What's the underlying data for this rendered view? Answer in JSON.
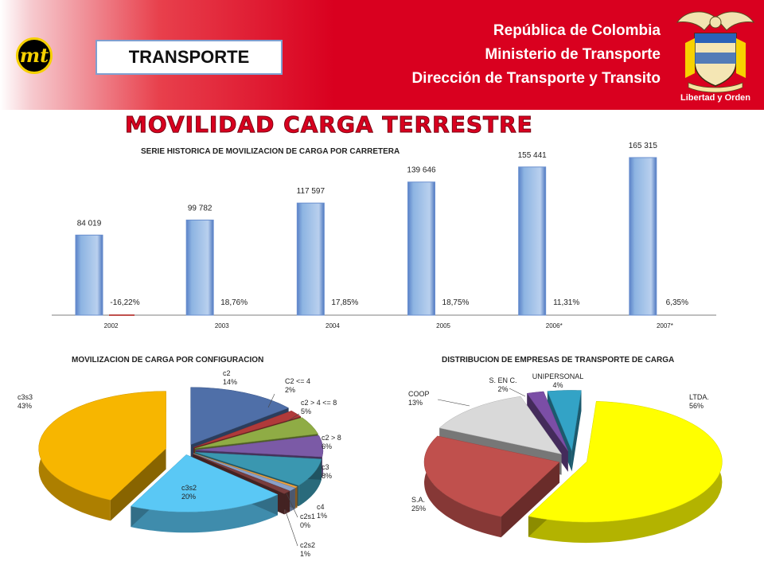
{
  "header": {
    "badge": "TRANSPORTE",
    "ministry_lines": [
      "República de Colombia",
      "Ministerio de Transporte",
      "Dirección de Transporte y Transito"
    ],
    "seal_motto": "Libertad y Orden"
  },
  "page_title": "MOVILIDAD CARGA TERRESTRE",
  "colors": {
    "header_red": "#d9001f",
    "bar_blue": "#8db4e2",
    "growth_red": "#c0504d"
  },
  "chart_data": [
    {
      "type": "bar",
      "title": "SERIE HISTORICA DE MOVILIZACION DE CARGA POR CARRETERA",
      "categories": [
        "2002",
        "2003",
        "2004",
        "2005",
        "2006*",
        "2007*"
      ],
      "series": [
        {
          "values": [
            84019,
            99782,
            117597,
            139646,
            155441,
            165315
          ],
          "labels": [
            "84 019",
            "99 782",
            "117 597",
            "139 646",
            "155 441",
            "165 315"
          ]
        },
        {
          "values": [
            -16.22,
            18.76,
            17.85,
            18.75,
            11.31,
            6.35
          ],
          "labels": [
            "-16,22%",
            "18,76%",
            "17,85%",
            "18,75%",
            "11,31%",
            "6,35%"
          ]
        }
      ],
      "ylim": [
        0,
        165315
      ]
    },
    {
      "type": "pie",
      "title": "MOVILIZACION DE CARGA POR CONFIGURACION",
      "slices": [
        {
          "label": "c2",
          "pct_label": "14%",
          "value": 14,
          "color": "#4f6fa8"
        },
        {
          "label": "C2 <= 4",
          "pct_label": "2%",
          "value": 2,
          "color": "#b03a3a"
        },
        {
          "label": "c2 > 4 <= 8",
          "pct_label": "5%",
          "value": 5,
          "color": "#8fac45"
        },
        {
          "label": "c2 > 8",
          "pct_label": "6%",
          "value": 6,
          "color": "#7b5aa6"
        },
        {
          "label": "c3",
          "pct_label": "8%",
          "value": 8,
          "color": "#3a97b0"
        },
        {
          "label": "c2s1",
          "pct_label": "0%",
          "value": 0.4,
          "color": "#f0a23c"
        },
        {
          "label": "c2s2",
          "pct_label": "1%",
          "value": 1,
          "color": "#8aa0c8"
        },
        {
          "label": "c4",
          "pct_label": "1%",
          "value": 1,
          "color": "#7a3d3d"
        },
        {
          "label": "c3s2",
          "pct_label": "20%",
          "value": 20,
          "color": "#5ac8f5"
        },
        {
          "label": "c3s3",
          "pct_label": "43%",
          "value": 43,
          "color": "#f7b600"
        }
      ]
    },
    {
      "type": "pie",
      "title": "DISTRIBUCION DE EMPRESAS DE TRANSPORTE DE CARGA",
      "slices": [
        {
          "label": "LTDA.",
          "pct_label": "56%",
          "value": 56,
          "color": "#ffff00"
        },
        {
          "label": "S.A.",
          "pct_label": "25%",
          "value": 25,
          "color": "#c0504d"
        },
        {
          "label": "COOP",
          "pct_label": "13%",
          "value": 13,
          "color": "#d9d9d9"
        },
        {
          "label": "S. EN C.",
          "pct_label": "2%",
          "value": 2,
          "color": "#7b4ea6"
        },
        {
          "label": "UNIPERSONAL",
          "pct_label": "4%",
          "value": 4,
          "color": "#33a3c6"
        }
      ]
    }
  ]
}
